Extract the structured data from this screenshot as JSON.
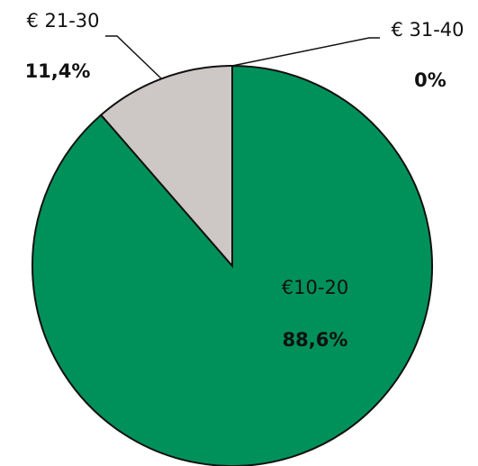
{
  "chart_data": {
    "type": "pie",
    "categories": [
      "€10-20",
      "€ 21-30",
      "€ 31-40"
    ],
    "values": [
      88.6,
      11.4,
      0
    ],
    "value_labels": [
      "88,6%",
      "11,4%",
      "0%"
    ],
    "colors": [
      "#00915a",
      "#cdc8c5",
      "#cdc8c5"
    ]
  }
}
